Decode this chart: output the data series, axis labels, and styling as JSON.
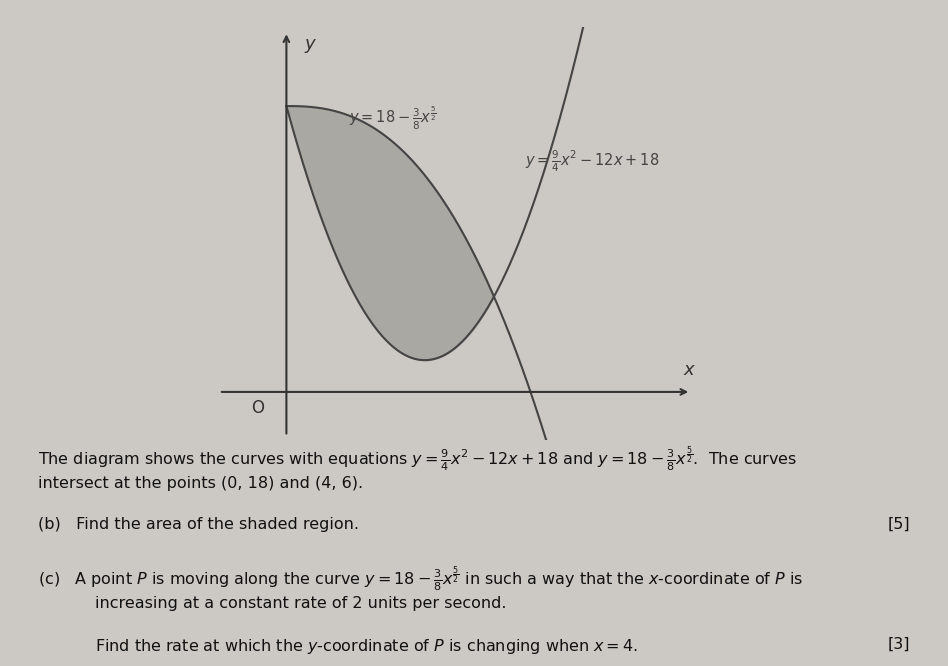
{
  "background_color": "#ccc9c4",
  "shaded_color": "#aaa8a3",
  "curve_color": "#444444",
  "axis_color": "#333333",
  "text_color": "#111111",
  "label1": "$y = 18 - \\frac{3}{8}x^{\\frac{5}{2}}$",
  "label2": "$y = \\frac{9}{4}x^2 - 12x + 18$",
  "origin_label": "O",
  "x_label": "x",
  "y_label": "y",
  "figsize": [
    9.48,
    6.66
  ],
  "dpi": 100,
  "xlim": [
    -1.5,
    8.0
  ],
  "ylim": [
    -3.0,
    23.0
  ],
  "body_text_line1": "The diagram shows the curves with equations $y = \\frac{9}{4}x^2 - 12x + 18$ and $y = 18 - \\frac{3}{8}x^{\\frac{5}{2}}$.  The curves",
  "body_text_line2": "intersect at the points (0, 18) and (4, 6).",
  "part_b_label": "(b)",
  "part_b_text": "Find the area of the shaded region.",
  "part_b_marks": "[5]",
  "part_c_label": "(c)",
  "part_c_text1": "A point $P$ is moving along the curve $y = 18 - \\frac{3}{8}x^{\\frac{5}{2}}$ in such a way that the $x$-coordinate of $P$ is",
  "part_c_text2": "increasing at a constant rate of 2 units per second.",
  "part_c_text3": "Find the rate at which the $y$-coordinate of $P$ is changing when $x = 4$.",
  "part_c_marks": "[3]"
}
